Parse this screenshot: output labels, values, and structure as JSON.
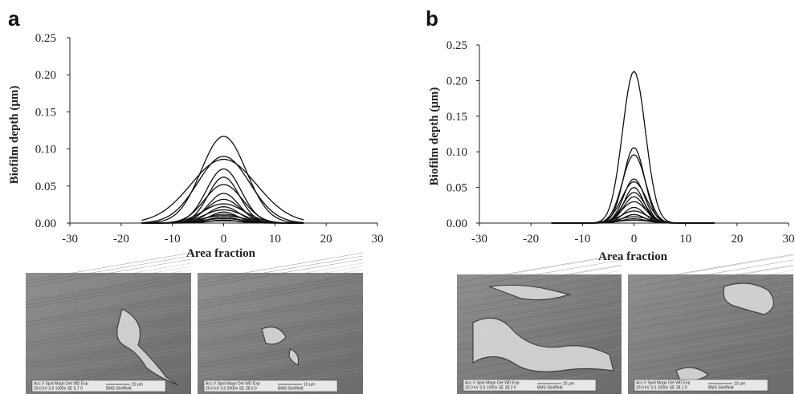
{
  "chart_data": [
    {
      "type": "line",
      "panel_label": "a",
      "xlabel": "Area fraction",
      "ylabel": "Biofilm depth (μm)",
      "xlim": [
        -30,
        30
      ],
      "ylim": [
        0,
        0.25
      ],
      "xticks": [
        "-30",
        "-20",
        "-10",
        "0",
        "10",
        "20",
        "30"
      ],
      "yticks": [
        "0.00",
        "0.05",
        "0.10",
        "0.15",
        "0.20",
        "0.25"
      ],
      "series": [
        {
          "peak": 0.117,
          "width": 6.5
        },
        {
          "peak": 0.09,
          "width": 7.5
        },
        {
          "peak": 0.086,
          "width": 9.5
        },
        {
          "peak": 0.073,
          "width": 5.0
        },
        {
          "peak": 0.062,
          "width": 4.5
        },
        {
          "peak": 0.052,
          "width": 5.5
        },
        {
          "peak": 0.04,
          "width": 4.5
        },
        {
          "peak": 0.032,
          "width": 5.0
        },
        {
          "peak": 0.026,
          "width": 6.0
        },
        {
          "peak": 0.022,
          "width": 4.5
        },
        {
          "peak": 0.018,
          "width": 5.5
        },
        {
          "peak": 0.015,
          "width": 4.0
        },
        {
          "peak": 0.012,
          "width": 5.0
        },
        {
          "peak": 0.01,
          "width": 6.0
        },
        {
          "peak": 0.008,
          "width": 4.5
        },
        {
          "peak": 0.006,
          "width": 5.5
        },
        {
          "peak": 0.004,
          "width": 4.0
        },
        {
          "peak": 0.003,
          "width": 6.5
        }
      ]
    },
    {
      "type": "line",
      "panel_label": "b",
      "xlabel": "Area fraction",
      "ylabel": "Biofilm depth (μm)",
      "xlim": [
        -30,
        30
      ],
      "ylim": [
        0,
        0.25
      ],
      "xticks": [
        "-30",
        "-20",
        "-10",
        "0",
        "10",
        "20",
        "30"
      ],
      "yticks": [
        "0.00",
        "0.05",
        "0.10",
        "0.15",
        "0.20",
        "0.25"
      ],
      "series": [
        {
          "peak": 0.213,
          "width": 3.3
        },
        {
          "peak": 0.106,
          "width": 3.0
        },
        {
          "peak": 0.096,
          "width": 3.3
        },
        {
          "peak": 0.062,
          "width": 3.0
        },
        {
          "peak": 0.058,
          "width": 3.5
        },
        {
          "peak": 0.05,
          "width": 2.8
        },
        {
          "peak": 0.043,
          "width": 3.2
        },
        {
          "peak": 0.037,
          "width": 3.0
        },
        {
          "peak": 0.03,
          "width": 3.5
        },
        {
          "peak": 0.022,
          "width": 3.0
        },
        {
          "peak": 0.017,
          "width": 3.8
        },
        {
          "peak": 0.012,
          "width": 3.0
        },
        {
          "peak": 0.009,
          "width": 4.0
        },
        {
          "peak": 0.006,
          "width": 3.5
        },
        {
          "peak": 0.004,
          "width": 4.5
        }
      ]
    }
  ],
  "micrographs": [
    {
      "panel": "a",
      "header": "Acc.V  Spot Magn   Det  WD  Exp",
      "values": "20.0 kV 3.0  1000x   SE   6.7  0",
      "scale": "20 μm",
      "site": "BMS Sheffield"
    },
    {
      "panel": "a",
      "header": "Acc.V  Spot Magn   Det  WD  Exp",
      "values": "20.0 kV 3.0  2000x   SE  28.0  0",
      "scale": "10 μm",
      "site": "BMS Sheffield"
    },
    {
      "panel": "b",
      "header": "Acc.V  Spot Magn   Det  WD  Exp",
      "values": "20.0 kV 3.0  1000x   SE  28.3  0",
      "scale": "20 μm",
      "site": "BMS Sheffield"
    },
    {
      "panel": "b",
      "header": "Acc.V  Spot Magn   Det  WD  Exp",
      "values": "20.0 kV 3.0  2000x   SE  28.1  0",
      "scale": "10 μm",
      "site": "BMS Sheffield"
    }
  ]
}
